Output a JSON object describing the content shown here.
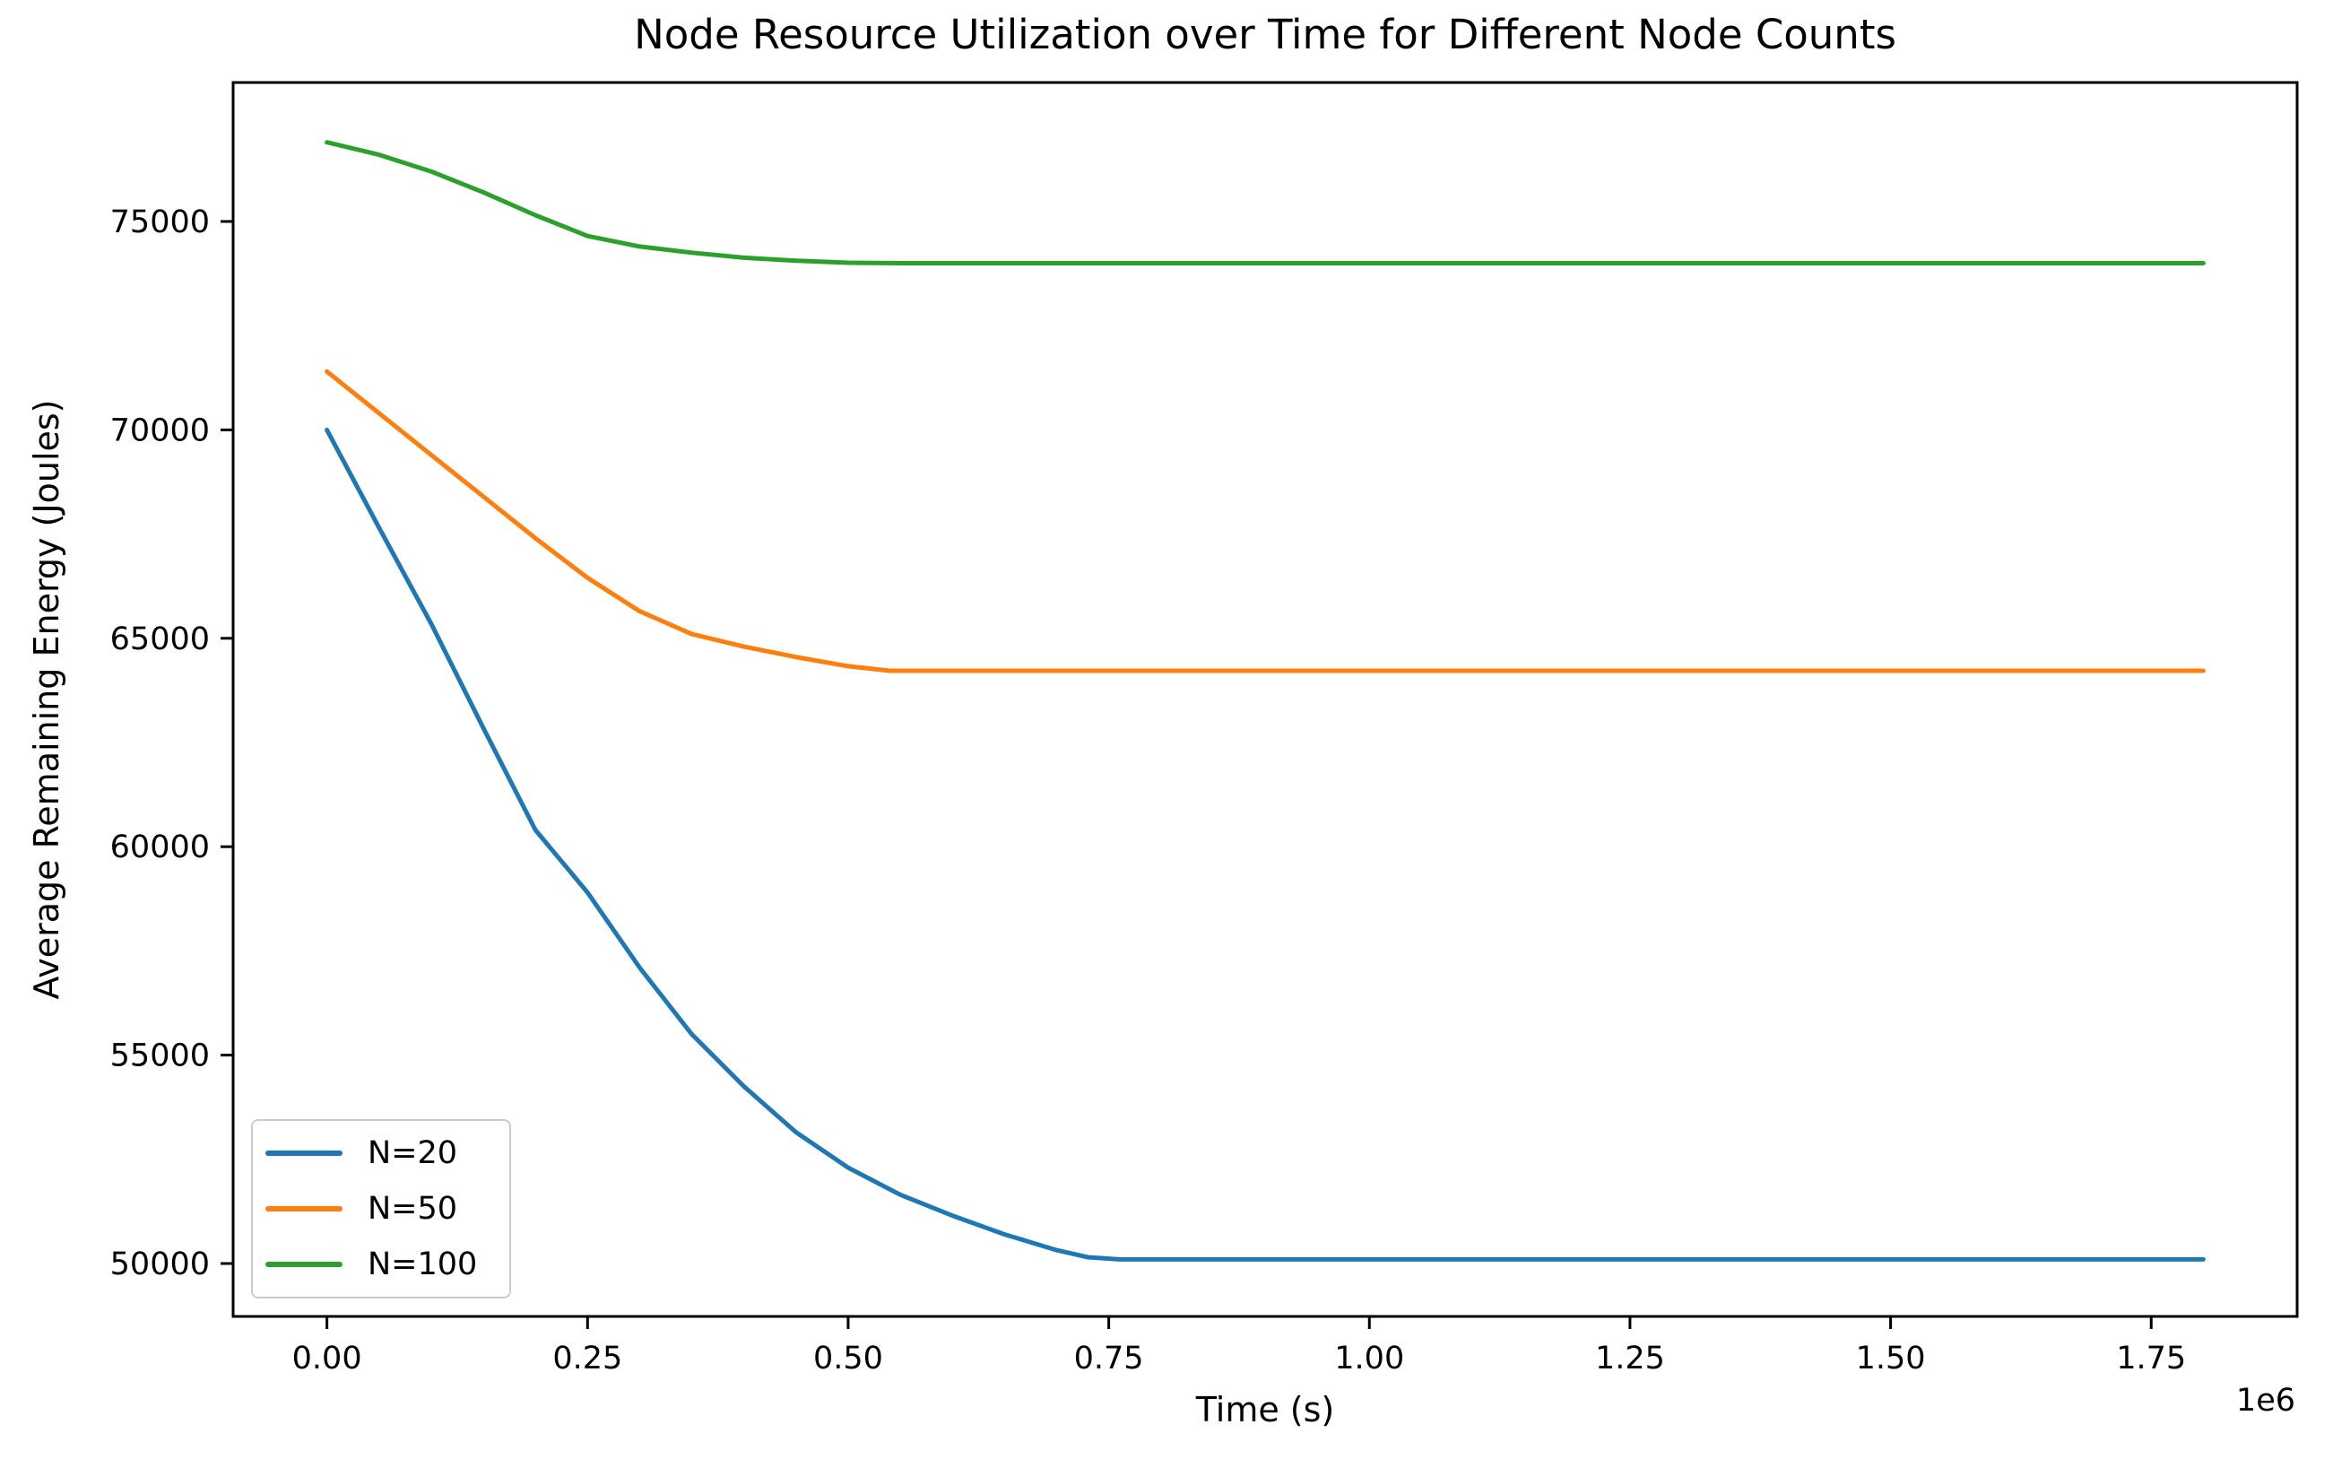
{
  "chart_data": {
    "type": "line",
    "title": "Node Resource Utilization over Time for Different Node Counts",
    "xlabel": "Time (s)",
    "ylabel": "Average Remaining Energy (Joules)",
    "x_offset_label": "1e6",
    "xlim": [
      -90000,
      1890000
    ],
    "ylim": [
      48731,
      78334
    ],
    "grid": false,
    "legend_position": "lower left",
    "axis_color": "#000000",
    "background_color": "#ffffff",
    "x_ticks": [
      {
        "value": 0,
        "label": "0.00"
      },
      {
        "value": 250000,
        "label": "0.25"
      },
      {
        "value": 500000,
        "label": "0.50"
      },
      {
        "value": 750000,
        "label": "0.75"
      },
      {
        "value": 1000000,
        "label": "1.00"
      },
      {
        "value": 1250000,
        "label": "1.25"
      },
      {
        "value": 1500000,
        "label": "1.50"
      },
      {
        "value": 1750000,
        "label": "1.75"
      }
    ],
    "y_ticks": [
      {
        "value": 50000,
        "label": "50000"
      },
      {
        "value": 55000,
        "label": "55000"
      },
      {
        "value": 60000,
        "label": "60000"
      },
      {
        "value": 65000,
        "label": "65000"
      },
      {
        "value": 70000,
        "label": "70000"
      },
      {
        "value": 75000,
        "label": "75000"
      }
    ],
    "series": [
      {
        "name": "N=20",
        "color": "#1f77b4",
        "points": [
          [
            0,
            70000
          ],
          [
            50000,
            67650
          ],
          [
            100000,
            65350
          ],
          [
            150000,
            62850
          ],
          [
            200000,
            60400
          ],
          [
            250000,
            58900
          ],
          [
            300000,
            57100
          ],
          [
            350000,
            55500
          ],
          [
            400000,
            54250
          ],
          [
            450000,
            53150
          ],
          [
            500000,
            52300
          ],
          [
            550000,
            51650
          ],
          [
            600000,
            51150
          ],
          [
            650000,
            50700
          ],
          [
            700000,
            50320
          ],
          [
            730000,
            50150
          ],
          [
            760000,
            50100
          ],
          [
            1000000,
            50100
          ],
          [
            1400000,
            50100
          ],
          [
            1800000,
            50100
          ]
        ]
      },
      {
        "name": "N=50",
        "color": "#ff7f0e",
        "points": [
          [
            0,
            71400
          ],
          [
            50000,
            70400
          ],
          [
            100000,
            69400
          ],
          [
            150000,
            68400
          ],
          [
            200000,
            67400
          ],
          [
            250000,
            66450
          ],
          [
            300000,
            65650
          ],
          [
            350000,
            65100
          ],
          [
            400000,
            64800
          ],
          [
            450000,
            64550
          ],
          [
            500000,
            64330
          ],
          [
            540000,
            64220
          ],
          [
            1000000,
            64220
          ],
          [
            1400000,
            64220
          ],
          [
            1800000,
            64220
          ]
        ]
      },
      {
        "name": "N=100",
        "color": "#2ca02c",
        "points": [
          [
            0,
            76900
          ],
          [
            50000,
            76600
          ],
          [
            100000,
            76200
          ],
          [
            150000,
            75700
          ],
          [
            200000,
            75150
          ],
          [
            250000,
            74650
          ],
          [
            300000,
            74400
          ],
          [
            350000,
            74250
          ],
          [
            400000,
            74130
          ],
          [
            450000,
            74060
          ],
          [
            500000,
            74010
          ],
          [
            550000,
            74000
          ],
          [
            1000000,
            74000
          ],
          [
            1400000,
            74000
          ],
          [
            1800000,
            74000
          ]
        ]
      }
    ]
  }
}
